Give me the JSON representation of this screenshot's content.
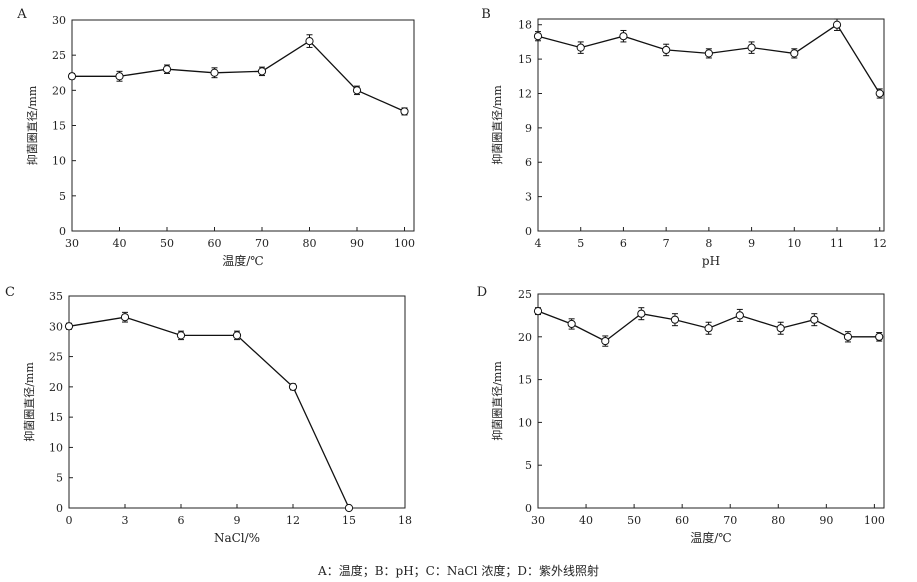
{
  "caption": "A：温度；B：pH；C：NaCl 浓度；D：紫外线照射",
  "chart_data": [
    {
      "type": "line",
      "panel": "A",
      "title": "",
      "xlabel": "温度/℃",
      "ylabel": "抑菌圈直径/mm",
      "x": [
        30,
        40,
        50,
        60,
        70,
        80,
        90,
        100
      ],
      "values": [
        22,
        22,
        23,
        22.5,
        22.7,
        27,
        20,
        17
      ],
      "errors": [
        0.4,
        0.7,
        0.6,
        0.7,
        0.6,
        0.9,
        0.6,
        0.5
      ],
      "xlim": [
        30,
        102
      ],
      "ylim": [
        0,
        30
      ],
      "xticks": [
        30,
        40,
        50,
        60,
        70,
        80,
        90,
        100
      ],
      "yticks": [
        0,
        5,
        10,
        15,
        20,
        25,
        30
      ]
    },
    {
      "type": "line",
      "panel": "B",
      "title": "",
      "xlabel": "pH",
      "ylabel": "抑菌圈直径/mm",
      "x": [
        4,
        5,
        6,
        7,
        8,
        9,
        10,
        11,
        12
      ],
      "values": [
        17,
        16,
        17,
        15.8,
        15.5,
        16,
        15.5,
        18,
        12
      ],
      "errors": [
        0.4,
        0.5,
        0.5,
        0.5,
        0.4,
        0.5,
        0.4,
        0.5,
        0.4
      ],
      "xlim": [
        4,
        12.1
      ],
      "ylim": [
        0,
        18.5
      ],
      "xticks": [
        4,
        5,
        6,
        7,
        8,
        9,
        10,
        11,
        12
      ],
      "yticks": [
        0,
        3,
        6,
        9,
        12,
        15,
        18
      ]
    },
    {
      "type": "line",
      "panel": "C",
      "title": "",
      "xlabel": "NaCl/%",
      "ylabel": "抑菌圈直径/mm",
      "x": [
        0,
        3,
        6,
        9,
        12,
        15
      ],
      "values": [
        30,
        31.5,
        28.5,
        28.5,
        20,
        0
      ],
      "errors": [
        0.5,
        0.8,
        0.7,
        0.7,
        0.5,
        0.3
      ],
      "xlim": [
        0,
        18
      ],
      "ylim": [
        0,
        35
      ],
      "xticks": [
        0,
        3,
        6,
        9,
        12,
        15,
        18
      ],
      "yticks": [
        0,
        5,
        10,
        15,
        20,
        25,
        30,
        35
      ]
    },
    {
      "type": "line",
      "panel": "D",
      "title": "",
      "xlabel": "温度/℃",
      "ylabel": "抑菌圈直径/mm",
      "x": [
        30,
        37,
        44,
        51.5,
        58.5,
        65.5,
        72,
        80.5,
        87.5,
        94.5,
        101
      ],
      "values": [
        23,
        21.5,
        19.5,
        22.7,
        22,
        21,
        22.5,
        21,
        22,
        20,
        20
      ],
      "errors": [
        0.4,
        0.6,
        0.6,
        0.7,
        0.7,
        0.7,
        0.7,
        0.7,
        0.7,
        0.6,
        0.5
      ],
      "xlim": [
        30,
        102
      ],
      "ylim": [
        0,
        25
      ],
      "xticks": [
        30,
        40,
        50,
        60,
        70,
        80,
        90,
        100
      ],
      "yticks": [
        0,
        5,
        10,
        15,
        20,
        25
      ]
    }
  ]
}
